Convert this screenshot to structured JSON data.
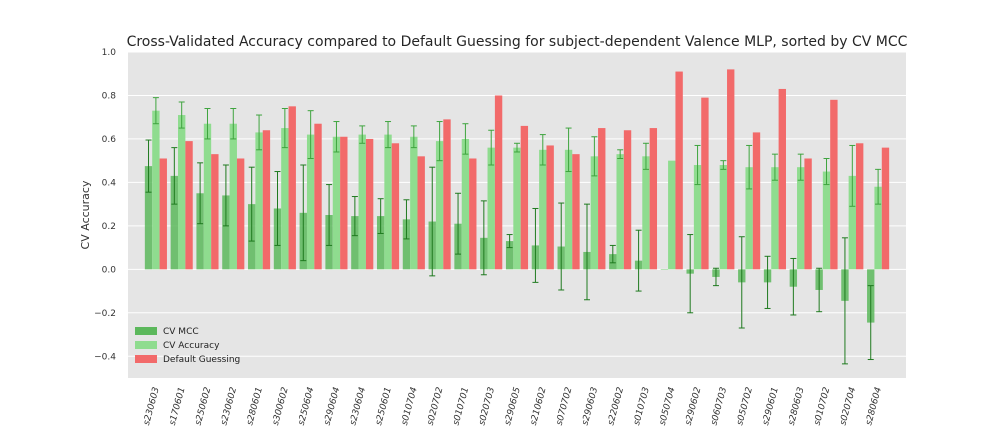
{
  "chart_data": {
    "type": "bar",
    "title": "Cross-Validated Accuracy compared to Default Guessing  for subject-dependent Valence MLP, sorted by CV MCC",
    "xlabel": "",
    "ylabel": "CV Accuracy",
    "ylim": [
      -0.5,
      1.0
    ],
    "yticks": [
      "−0.4",
      "−0.2",
      "0.0",
      "0.2",
      "0.4",
      "0.6",
      "0.8",
      "1.0"
    ],
    "grid": true,
    "legend_position": "lower-left",
    "categories": [
      "s230603",
      "s170601",
      "s250602",
      "s230602",
      "s280601",
      "s300602",
      "s250604",
      "s290604",
      "s230604",
      "s250601",
      "s010704",
      "s020702",
      "s010701",
      "s020703",
      "s290605",
      "s210602",
      "s070702",
      "s290603",
      "s220602",
      "s010703",
      "s050704",
      "s290602",
      "s060703",
      "s050702",
      "s290601",
      "s280603",
      "s010702",
      "s020704",
      "s280604"
    ],
    "series": [
      {
        "name": "CV MCC",
        "color": "#5cb85c",
        "values": [
          0.475,
          0.43,
          0.35,
          0.34,
          0.3,
          0.28,
          0.26,
          0.25,
          0.245,
          0.245,
          0.23,
          0.22,
          0.21,
          0.145,
          0.13,
          0.11,
          0.105,
          0.08,
          0.07,
          0.04,
          0.0,
          -0.02,
          -0.035,
          -0.06,
          -0.06,
          -0.08,
          -0.095,
          -0.145,
          -0.245
        ],
        "errors": [
          0.12,
          0.13,
          0.14,
          0.14,
          0.17,
          0.17,
          0.22,
          0.14,
          0.09,
          0.08,
          0.09,
          0.25,
          0.14,
          0.17,
          0.03,
          0.17,
          0.2,
          0.22,
          0.04,
          0.14,
          0.0,
          0.18,
          0.04,
          0.21,
          0.12,
          0.13,
          0.1,
          0.29,
          0.17
        ]
      },
      {
        "name": "CV Accuracy",
        "color": "#8fdc8f",
        "values": [
          0.73,
          0.71,
          0.67,
          0.67,
          0.63,
          0.65,
          0.62,
          0.61,
          0.62,
          0.62,
          0.61,
          0.59,
          0.6,
          0.56,
          0.56,
          0.55,
          0.55,
          0.52,
          0.53,
          0.52,
          0.5,
          0.48,
          0.48,
          0.47,
          0.47,
          0.47,
          0.45,
          0.43,
          0.38
        ]
      },
      {
        "name": "Default Guessing",
        "color": "#f26a6a",
        "values": [
          0.51,
          0.59,
          0.53,
          0.51,
          0.64,
          0.75,
          0.67,
          0.61,
          0.6,
          0.58,
          0.52,
          0.69,
          0.51,
          0.8,
          0.66,
          0.57,
          0.53,
          0.65,
          0.64,
          0.65,
          0.91,
          0.79,
          0.92,
          0.63,
          0.83,
          0.51,
          0.78,
          0.58,
          0.56
        ]
      }
    ],
    "accuracy_errors": [
      0.06,
      0.06,
      0.07,
      0.07,
      0.08,
      0.09,
      0.11,
      0.07,
      0.04,
      0.06,
      0.05,
      0.09,
      0.07,
      0.08,
      0.02,
      0.07,
      0.1,
      0.09,
      0.02,
      0.06,
      0.0,
      0.09,
      0.02,
      0.1,
      0.06,
      0.06,
      0.06,
      0.14,
      0.08
    ]
  }
}
